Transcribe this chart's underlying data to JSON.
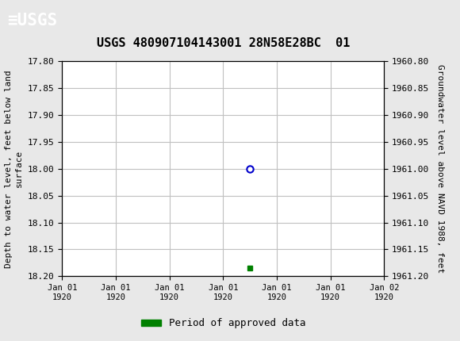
{
  "title": "USGS 480907104143001 28N58E28BC  01",
  "ylabel_left": "Depth to water level, feet below land\nsurface",
  "ylabel_right": "Groundwater level above NAVD 1988, feet",
  "ylim_left": [
    17.8,
    18.2
  ],
  "ylim_right": [
    1960.8,
    1961.2
  ],
  "yticks_left": [
    17.8,
    17.85,
    17.9,
    17.95,
    18.0,
    18.05,
    18.1,
    18.15,
    18.2
  ],
  "yticks_right": [
    1960.8,
    1960.85,
    1960.9,
    1960.95,
    1961.0,
    1961.05,
    1961.1,
    1961.15,
    1961.2
  ],
  "data_point_x": 3.5,
  "data_point_y": 18.0,
  "data_point_color": "#0000cc",
  "green_rect_x": 3.5,
  "green_rect_y": 18.185,
  "green_rect_color": "#008000",
  "xlim": [
    0,
    6
  ],
  "xtick_labels": [
    "Jan 01\n1920",
    "Jan 01\n1920",
    "Jan 01\n1920",
    "Jan 01\n1920",
    "Jan 01\n1920",
    "Jan 01\n1920",
    "Jan 02\n1920"
  ],
  "xtick_positions": [
    0,
    1,
    2,
    3,
    4,
    5,
    6
  ],
  "header_bg_color": "#1a6b3c",
  "bg_color": "#e8e8e8",
  "plot_bg_color": "#ffffff",
  "grid_color": "#c0c0c0",
  "legend_label": "Period of approved data",
  "legend_color": "#008000"
}
